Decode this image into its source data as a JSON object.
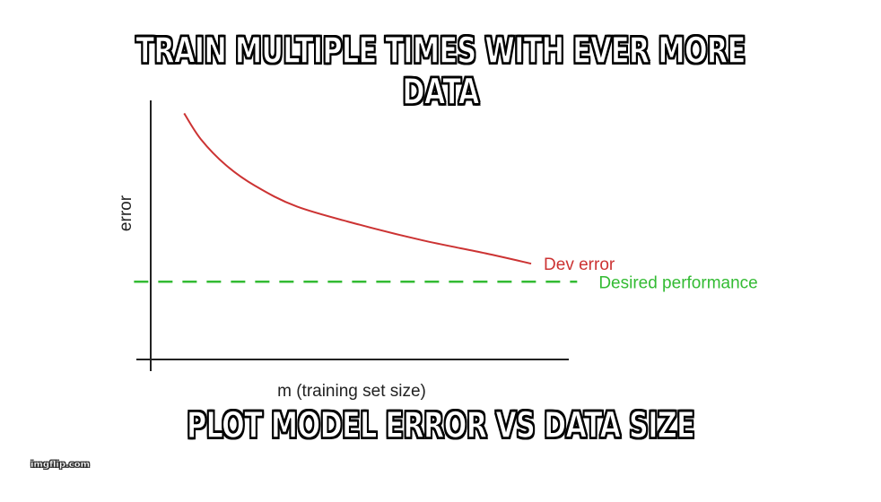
{
  "meme": {
    "top_text": "TRAIN MULTIPLE TIMES WITH EVER MORE DATA",
    "bottom_text": "PLOT MODEL ERROR VS DATA SIZE",
    "watermark": "imgflip.com"
  },
  "chart_data": {
    "type": "line",
    "title": "",
    "xlabel": "m (training set size)",
    "ylabel": "error",
    "xlim": [
      0,
      1
    ],
    "ylim": [
      0,
      1
    ],
    "grid": false,
    "series": [
      {
        "name": "Dev error",
        "color": "#cc3333",
        "style": "solid",
        "x": [
          0.08,
          0.12,
          0.18,
          0.25,
          0.35,
          0.5,
          0.65,
          0.8,
          0.91
        ],
        "y": [
          0.95,
          0.85,
          0.75,
          0.67,
          0.59,
          0.52,
          0.46,
          0.41,
          0.37
        ]
      },
      {
        "name": "Desired performance",
        "color": "#33bb33",
        "style": "dashed",
        "x": [
          -0.04,
          1.02
        ],
        "y": [
          0.3,
          0.3
        ]
      }
    ]
  }
}
